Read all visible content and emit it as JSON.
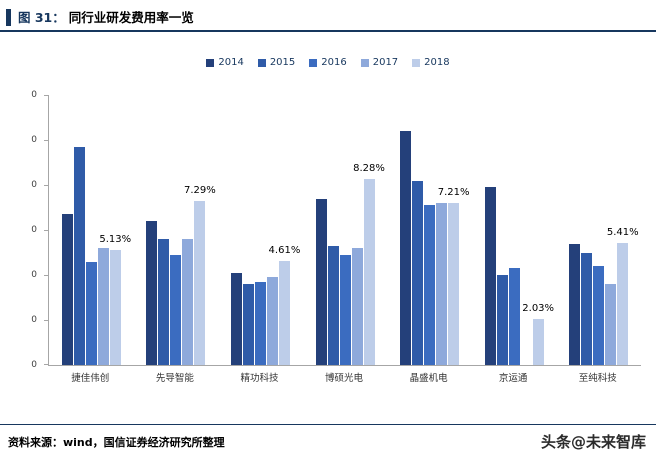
{
  "header": {
    "fig_label": "图 31：",
    "title": "同行业研发费用率一览"
  },
  "chart_data": {
    "type": "bar",
    "title": "同行业研发费用率一览",
    "categories": [
      "捷佳伟创",
      "先导智能",
      "精功科技",
      "博硕光电",
      "晶盛机电",
      "京运通",
      "至纯科技"
    ],
    "series": [
      {
        "name": "2014",
        "color": "#24407a",
        "values": [
          6.7,
          6.4,
          4.1,
          7.4,
          10.4,
          7.9,
          5.4
        ]
      },
      {
        "name": "2015",
        "color": "#2f5ba8",
        "values": [
          9.7,
          5.6,
          3.6,
          5.3,
          8.2,
          4.0,
          5.0
        ]
      },
      {
        "name": "2016",
        "color": "#3b6cc0",
        "values": [
          4.6,
          4.9,
          3.7,
          4.9,
          7.1,
          4.3,
          4.4
        ]
      },
      {
        "name": "2017",
        "color": "#8ea9db",
        "values": [
          5.2,
          5.6,
          3.9,
          5.2,
          7.2,
          0,
          3.6
        ]
      },
      {
        "name": "2018",
        "color": "#bdcde9",
        "values": [
          5.13,
          7.29,
          4.61,
          8.28,
          7.21,
          2.03,
          5.41
        ],
        "labels": [
          "5.13%",
          "7.29%",
          "4.61%",
          "8.28%",
          "7.21%",
          "2.03%",
          "5.41%"
        ]
      }
    ],
    "ylim": [
      0,
      12
    ],
    "y_tick_labels": [
      "0",
      "0",
      "0",
      "0",
      "0",
      "0",
      "0"
    ],
    "grid": false,
    "legend_position": "top",
    "xlabel": "",
    "ylabel": ""
  },
  "footer": {
    "source": "资料来源：wind，国信证券经济研究所整理",
    "watermark": "头条@未来智库"
  }
}
